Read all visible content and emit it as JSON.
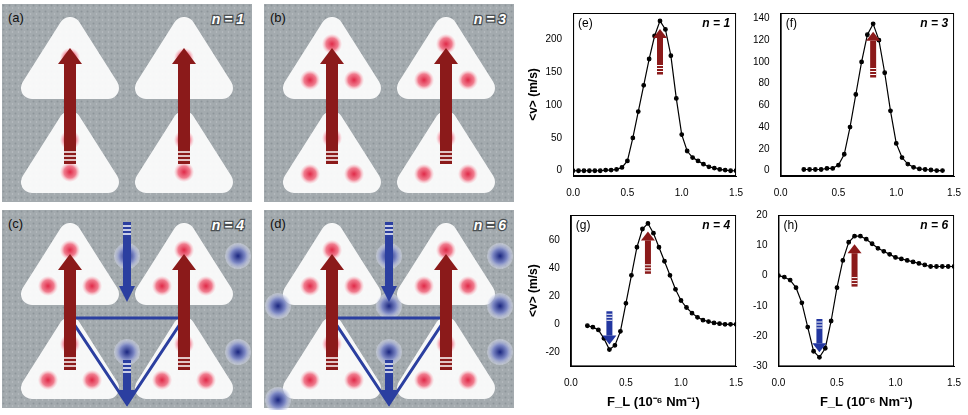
{
  "diagrams": [
    {
      "label": "(a)",
      "caption": "n = 1"
    },
    {
      "label": "(b)",
      "caption": "n = 3"
    },
    {
      "label": "(c)",
      "caption": "n = 4"
    },
    {
      "label": "(d)",
      "caption": "n = 6"
    }
  ],
  "chart_data": [
    {
      "type": "line",
      "panel_label": "(e)",
      "title": "n = 1",
      "y_label": "<v> (m/s)",
      "x": [
        0,
        0.05,
        0.1,
        0.15,
        0.2,
        0.25,
        0.3,
        0.35,
        0.4,
        0.45,
        0.5,
        0.55,
        0.6,
        0.65,
        0.7,
        0.75,
        0.8,
        0.85,
        0.9,
        0.95,
        1.0,
        1.05,
        1.1,
        1.15,
        1.2,
        1.25,
        1.3,
        1.35,
        1.4,
        1.45,
        1.5
      ],
      "values": [
        0,
        0,
        0,
        0,
        0,
        0,
        1,
        1,
        2,
        5,
        15,
        50,
        90,
        130,
        170,
        205,
        228,
        215,
        175,
        110,
        55,
        30,
        20,
        15,
        10,
        6,
        4,
        2,
        1,
        0,
        0
      ],
      "color": "#000000",
      "marker": "circle",
      "line_style": "solid",
      "xlim": [
        0,
        1.5
      ],
      "xticks": [
        {
          "value": 0,
          "label": "0.0"
        },
        {
          "value": 0.5,
          "label": "0.5"
        },
        {
          "value": 1,
          "label": "1.0"
        },
        {
          "value": 1.5,
          "label": "1.5"
        }
      ],
      "ylim": [
        -8,
        240
      ],
      "yticks": [
        0,
        50,
        100,
        150,
        200
      ],
      "grid": false
    },
    {
      "type": "line",
      "panel_label": "(f)",
      "title": "n = 3",
      "x": [
        0.2,
        0.25,
        0.3,
        0.35,
        0.4,
        0.45,
        0.5,
        0.55,
        0.6,
        0.65,
        0.7,
        0.75,
        0.8,
        0.85,
        0.9,
        0.95,
        1.0,
        1.05,
        1.1,
        1.15,
        1.2,
        1.25,
        1.3,
        1.35,
        1.4
      ],
      "values": [
        1,
        1,
        1,
        1,
        2,
        2,
        5,
        15,
        40,
        70,
        100,
        125,
        135,
        120,
        90,
        55,
        25,
        12,
        6,
        3,
        1.5,
        1,
        0.5,
        0,
        0
      ],
      "color": "#000000",
      "marker": "circle",
      "line_style": "solid",
      "xlim": [
        0,
        1.5
      ],
      "xticks": [
        {
          "value": 0,
          "label": "0.0"
        },
        {
          "value": 0.5,
          "label": "0.5"
        },
        {
          "value": 1,
          "label": "1.0"
        },
        {
          "value": 1.5,
          "label": "1.5"
        }
      ],
      "ylim": [
        -5,
        145
      ],
      "yticks": [
        0,
        20,
        40,
        60,
        80,
        100,
        120,
        140
      ],
      "grid": false
    },
    {
      "type": "line",
      "panel_label": "(g)",
      "title": "n = 4",
      "x_label": "F_L (10⁻⁶ Nm⁻¹)",
      "y_label": "<v> (m/s)",
      "x": [
        0.15,
        0.2,
        0.25,
        0.3,
        0.35,
        0.4,
        0.45,
        0.5,
        0.55,
        0.6,
        0.65,
        0.7,
        0.75,
        0.8,
        0.85,
        0.9,
        0.95,
        1.0,
        1.05,
        1.1,
        1.15,
        1.2,
        1.25,
        1.3,
        1.35,
        1.4,
        1.45,
        1.5
      ],
      "values": [
        -1,
        -2,
        -4,
        -10,
        -18,
        -15,
        -5,
        15,
        35,
        55,
        68,
        72,
        65,
        55,
        45,
        35,
        25,
        17,
        12,
        8,
        5,
        3,
        2,
        1,
        0.5,
        0,
        0,
        0
      ],
      "color": "#000000",
      "marker": "circle",
      "line_style": "solid",
      "xlim": [
        0,
        1.5
      ],
      "xticks": [
        {
          "value": 0,
          "label": "0.0"
        },
        {
          "value": 0.5,
          "label": "0.5"
        },
        {
          "value": 1,
          "label": "1.0"
        },
        {
          "value": 1.5,
          "label": "1.5"
        }
      ],
      "ylim": [
        -30,
        78
      ],
      "yticks": [
        -20,
        0,
        20,
        40,
        60
      ],
      "grid": false
    },
    {
      "type": "line",
      "panel_label": "(h)",
      "title": "n = 6",
      "x_label": "F_L (10⁻⁶ Nm⁻¹)",
      "x": [
        0,
        0.05,
        0.1,
        0.15,
        0.2,
        0.25,
        0.3,
        0.35,
        0.4,
        0.45,
        0.5,
        0.55,
        0.6,
        0.65,
        0.7,
        0.75,
        0.8,
        0.85,
        0.9,
        0.95,
        1.0,
        1.05,
        1.1,
        1.15,
        1.2,
        1.25,
        1.3,
        1.35,
        1.4,
        1.45,
        1.5
      ],
      "values": [
        0,
        -0.5,
        -1.5,
        -4,
        -9,
        -17,
        -25,
        -27,
        -24,
        -15,
        -4,
        5,
        11,
        13,
        13,
        12,
        10.5,
        9,
        8,
        7,
        6,
        5.5,
        5,
        4.5,
        4,
        3.5,
        3,
        3,
        3,
        3,
        3
      ],
      "color": "#000000",
      "marker": "circle",
      "line_style": "solid",
      "xlim": [
        0,
        1.5
      ],
      "xticks": [
        {
          "value": 0,
          "label": "0.0"
        },
        {
          "value": 0.5,
          "label": "0.5"
        },
        {
          "value": 1,
          "label": "1.0"
        },
        {
          "value": 1.5,
          "label": "1.5"
        }
      ],
      "ylim": [
        -30,
        20
      ],
      "yticks": [
        -30,
        -20,
        -10,
        0,
        10,
        20
      ],
      "grid": false
    }
  ]
}
